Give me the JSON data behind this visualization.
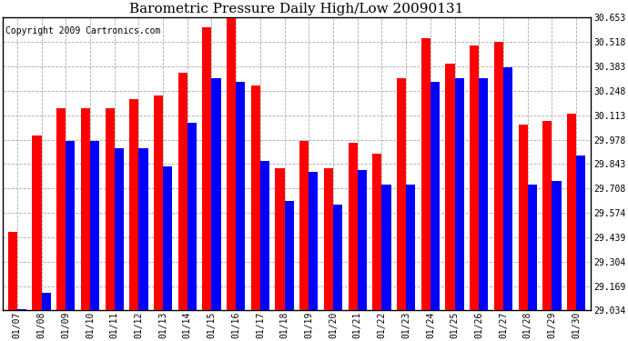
{
  "title": "Barometric Pressure Daily High/Low 20090131",
  "copyright": "Copyright 2009 Cartronics.com",
  "dates": [
    "01/07",
    "01/08",
    "01/09",
    "01/10",
    "01/11",
    "01/12",
    "01/13",
    "01/14",
    "01/15",
    "01/16",
    "01/17",
    "01/18",
    "01/19",
    "01/20",
    "01/21",
    "01/22",
    "01/23",
    "01/24",
    "01/25",
    "01/26",
    "01/27",
    "01/28",
    "01/29",
    "01/30"
  ],
  "highs": [
    29.47,
    30.0,
    30.15,
    30.15,
    30.15,
    30.2,
    30.22,
    30.35,
    30.6,
    30.65,
    30.28,
    29.82,
    29.97,
    29.82,
    29.96,
    29.9,
    30.32,
    30.54,
    30.4,
    30.5,
    30.52,
    30.06,
    30.08,
    30.12
  ],
  "lows": [
    29.04,
    29.13,
    29.97,
    29.97,
    29.93,
    29.93,
    29.83,
    30.07,
    30.32,
    30.3,
    29.86,
    29.64,
    29.8,
    29.62,
    29.81,
    29.73,
    29.73,
    30.3,
    30.32,
    30.32,
    30.38,
    29.73,
    29.75,
    29.89
  ],
  "yticks": [
    29.034,
    29.169,
    29.304,
    29.439,
    29.574,
    29.708,
    29.843,
    29.978,
    30.113,
    30.248,
    30.383,
    30.518,
    30.653
  ],
  "ymin": 29.034,
  "ymax": 30.653,
  "high_color": "#ff0000",
  "low_color": "#0000ff",
  "bg_color": "#ffffff",
  "grid_color": "#aaaaaa",
  "bar_width": 0.38,
  "title_fontsize": 11,
  "copyright_fontsize": 7
}
